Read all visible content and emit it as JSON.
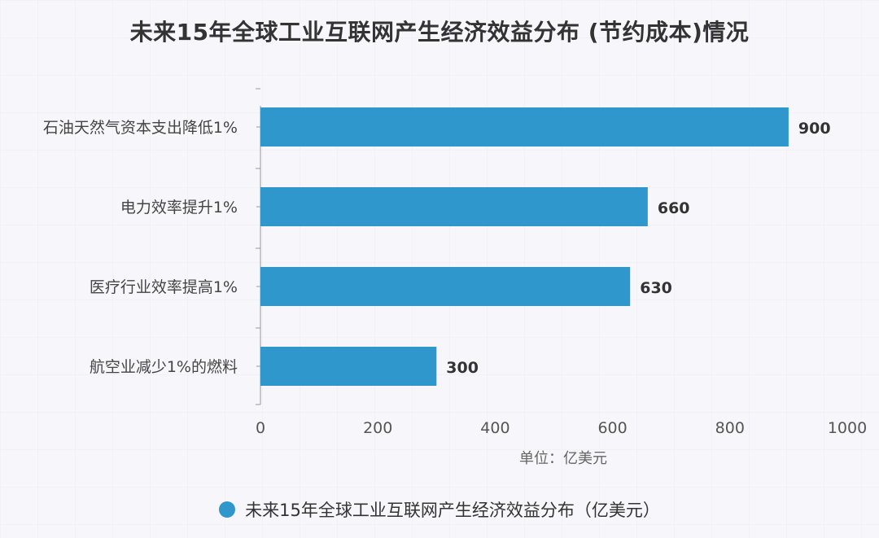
{
  "chart_data": {
    "type": "bar",
    "orientation": "horizontal",
    "title": "未来15年全球工业互联网产生经济效益分布 (节约成本)情况",
    "categories": [
      "石油天然气资本支出降低1%",
      "电力效率提升1%",
      "医疗行业效率提高1%",
      "航空业减少1%的燃料"
    ],
    "series": [
      {
        "name": "未来15年全球工业互联网产生经济效益分布（亿美元）",
        "values": [
          900,
          660,
          630,
          300
        ],
        "color": "#2f97cc"
      }
    ],
    "data_labels": [
      "900",
      "660",
      "630",
      "300"
    ],
    "xlabel": "单位：亿美元",
    "ylabel": "",
    "xlim": [
      0,
      1000
    ],
    "x_ticks": [
      0,
      200,
      400,
      600,
      800,
      1000
    ],
    "grid": false,
    "legend": "bottom"
  }
}
